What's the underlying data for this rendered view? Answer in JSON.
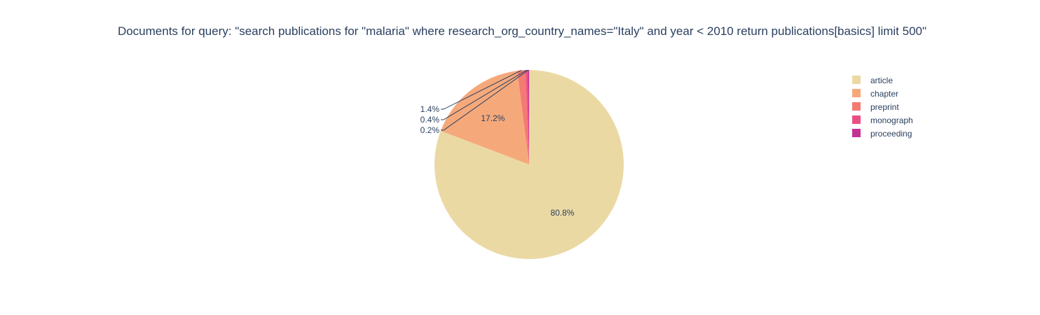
{
  "chart_data": {
    "type": "pie",
    "title": "Documents for query: \"search publications for \"malaria\" where research_org_country_names=\"Italy\" and year < 2010 return publications[basics] limit 500\"",
    "slices": [
      {
        "label": "article",
        "percent": 80.8,
        "percent_text": "80.8%",
        "color": "#ebd9a4"
      },
      {
        "label": "chapter",
        "percent": 17.2,
        "percent_text": "17.2%",
        "color": "#f5a97b"
      },
      {
        "label": "preprint",
        "percent": 1.4,
        "percent_text": "1.4%",
        "color": "#f47a72"
      },
      {
        "label": "monograph",
        "percent": 0.4,
        "percent_text": "0.4%",
        "color": "#ea5083"
      },
      {
        "label": "proceeding",
        "percent": 0.2,
        "percent_text": "0.2%",
        "color": "#c43294"
      }
    ],
    "legend_position": "top-right",
    "direction": "clockwise",
    "start": "top"
  }
}
